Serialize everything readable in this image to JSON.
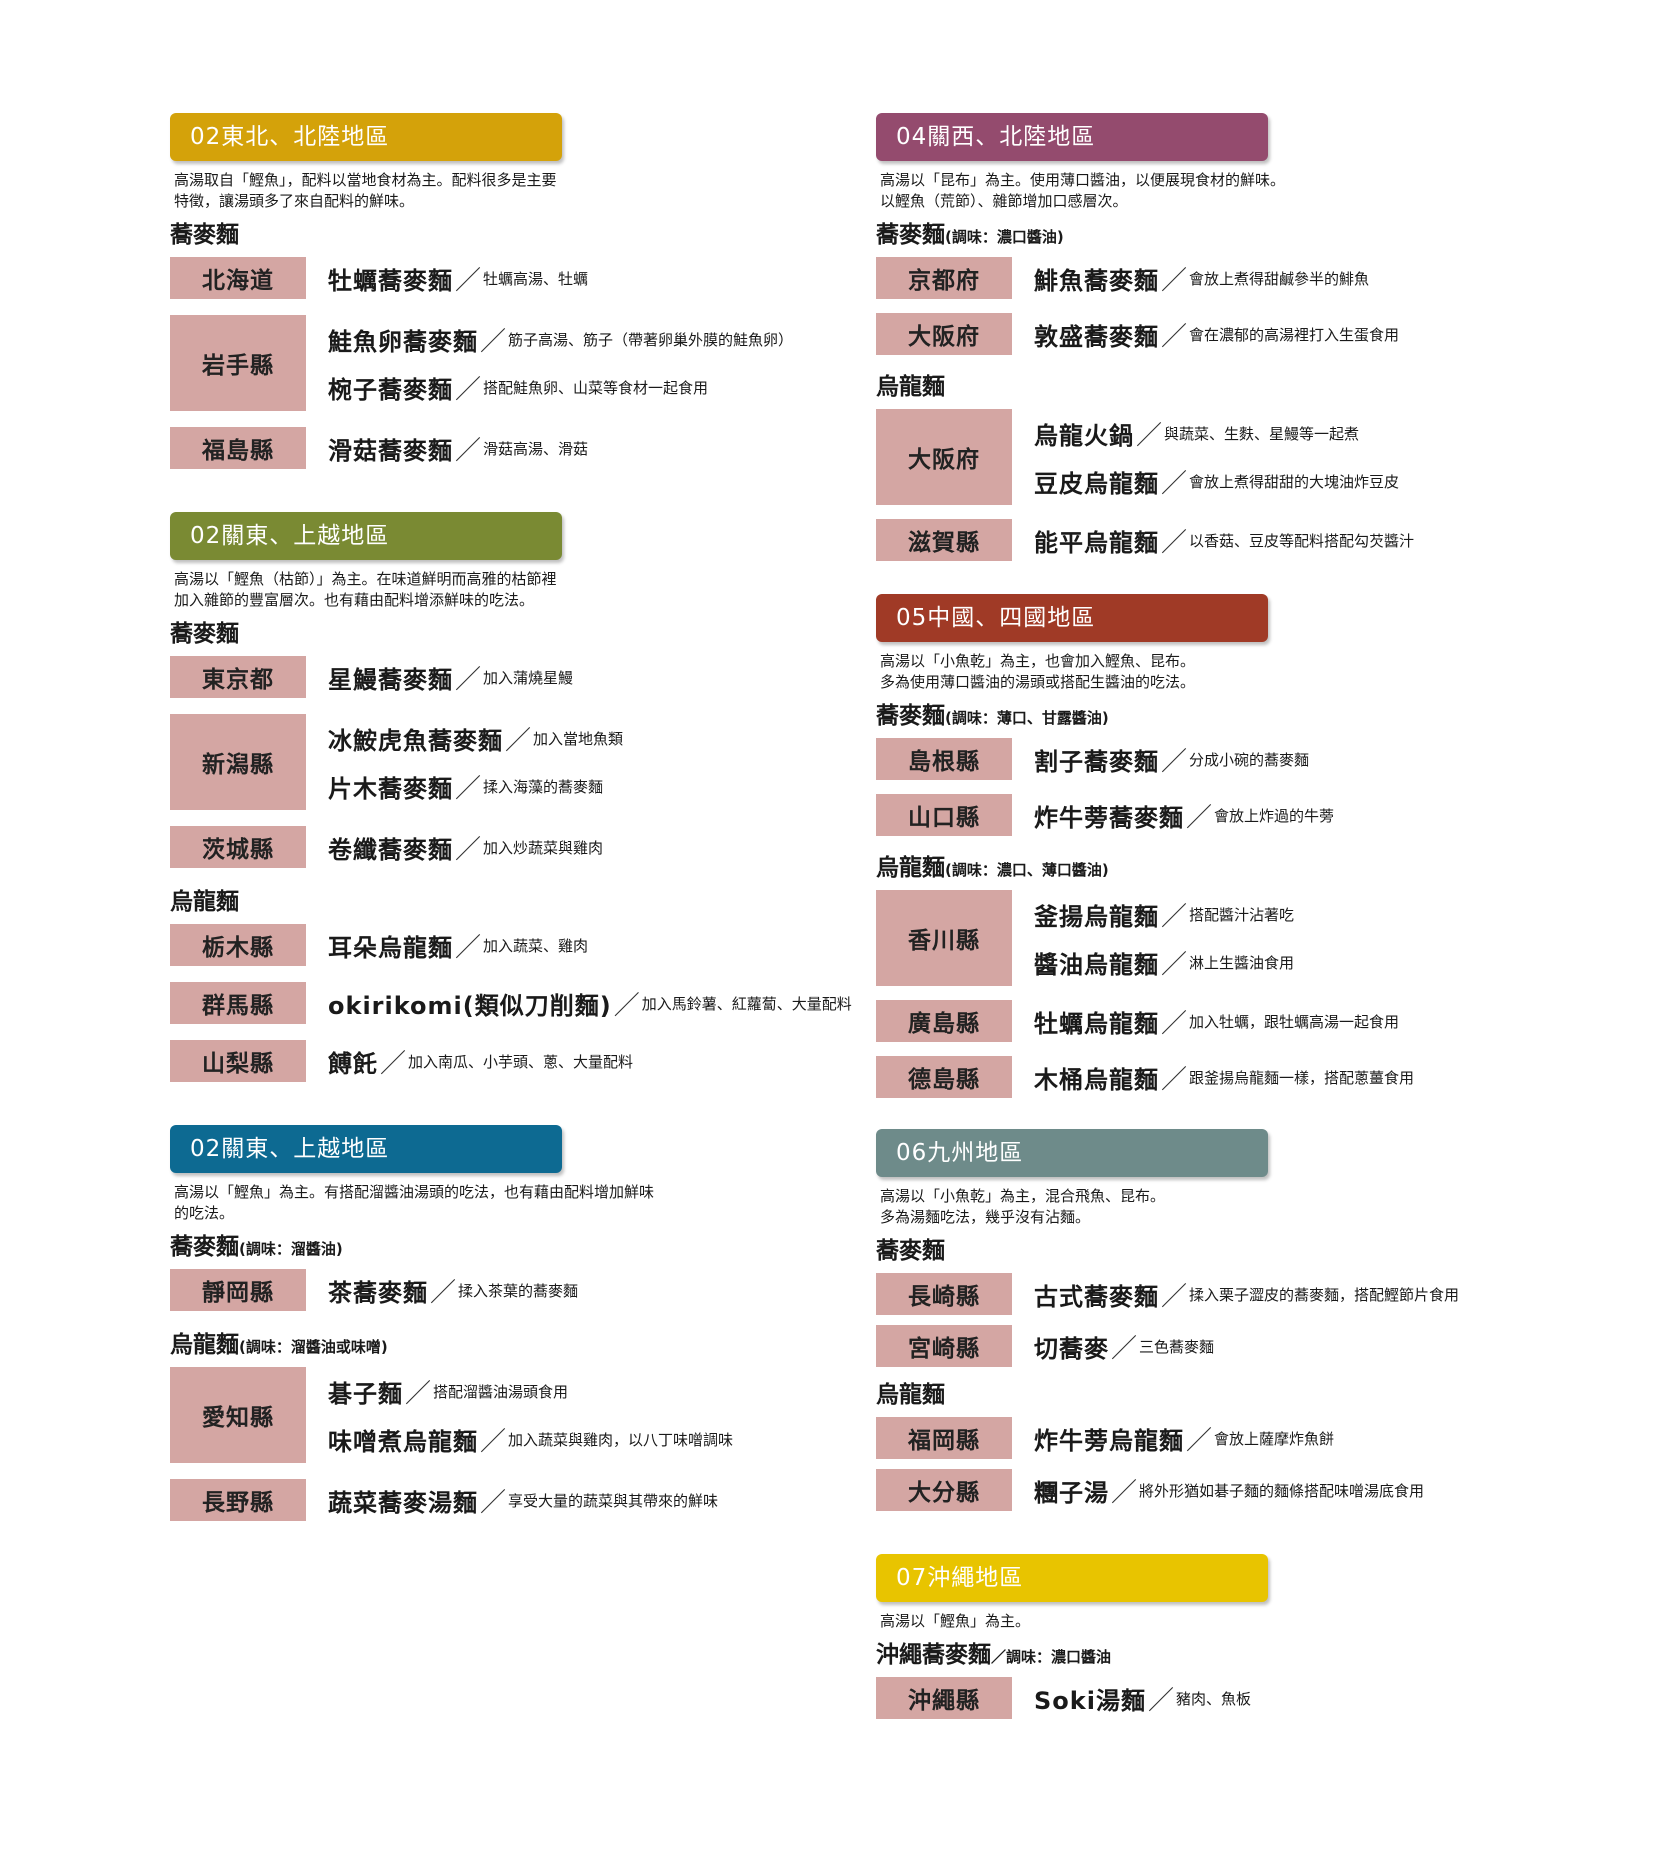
{
  "left": [
    {
      "title": "02東北、北陸地區",
      "color": "#d4a20a",
      "desc": "高湯取自「鰹魚」，配料以當地食材為主。配料很多是主要\n特徵，讓湯頭多了來自配料的鮮味。",
      "groups": [
        {
          "heading": "蕎麥麵",
          "note": "",
          "rows": [
            {
              "pref": "北海道",
              "dishes": [
                {
                  "name": "牡蠣蕎麥麵",
                  "desc": "牡蠣高湯、牡蠣"
                }
              ]
            },
            {
              "pref": "岩手縣",
              "dishes": [
                {
                  "name": "鮭魚卵蕎麥麵",
                  "desc": "筋子高湯、筋子（帶著卵巢外膜的鮭魚卵）"
                },
                {
                  "name": "椀子蕎麥麵",
                  "desc": "搭配鮭魚卵、山菜等食材一起食用"
                }
              ]
            },
            {
              "pref": "福島縣",
              "dishes": [
                {
                  "name": "滑菇蕎麥麵",
                  "desc": "滑菇高湯、滑菇"
                }
              ]
            }
          ]
        }
      ]
    },
    {
      "title": "02關東、上越地區",
      "color": "#7a8a33",
      "desc": "高湯以「鰹魚（枯節）」為主。在味道鮮明而高雅的枯節裡\n加入雜節的豐富層次。也有藉由配料增添鮮味的吃法。",
      "groups": [
        {
          "heading": "蕎麥麵",
          "note": "",
          "rows": [
            {
              "pref": "東京都",
              "dishes": [
                {
                  "name": "星鰻蕎麥麵",
                  "desc": "加入蒲燒星鰻"
                }
              ]
            },
            {
              "pref": "新潟縣",
              "dishes": [
                {
                  "name": "冰鮟虎魚蕎麥麵",
                  "desc": "加入當地魚類"
                },
                {
                  "name": "片木蕎麥麵",
                  "desc": "揉入海藻的蕎麥麵"
                }
              ]
            },
            {
              "pref": "茨城縣",
              "dishes": [
                {
                  "name": "卷纖蕎麥麵",
                  "desc": "加入炒蔬菜與雞肉"
                }
              ]
            }
          ]
        },
        {
          "heading": "烏龍麵",
          "note": "",
          "rows": [
            {
              "pref": "栃木縣",
              "dishes": [
                {
                  "name": "耳朵烏龍麵",
                  "desc": "加入蔬菜、雞肉"
                }
              ]
            },
            {
              "pref": "群馬縣",
              "dishes": [
                {
                  "name": "okirikomi(類似刀削麵)",
                  "desc": "加入馬鈴薯、紅蘿蔔、大量配料"
                }
              ]
            },
            {
              "pref": "山梨縣",
              "dishes": [
                {
                  "name": "餺飥",
                  "desc": "加入南瓜、小芋頭、蔥、大量配料"
                }
              ]
            }
          ]
        }
      ]
    },
    {
      "title": "02關東、上越地區",
      "color": "#0d6a92",
      "desc": "高湯以「鰹魚」為主。有搭配溜醬油湯頭的吃法，也有藉由配料增加鮮味\n的吃法。",
      "groups": [
        {
          "heading": "蕎麥麵",
          "note": "(調味：溜醬油)",
          "rows": [
            {
              "pref": "靜岡縣",
              "dishes": [
                {
                  "name": "茶蕎麥麵",
                  "desc": "揉入茶葉的蕎麥麵"
                }
              ]
            }
          ]
        },
        {
          "heading": "烏龍麵",
          "note": "(調味：溜醬油或味噌)",
          "rows": [
            {
              "pref": "愛知縣",
              "dishes": [
                {
                  "name": "碁子麵",
                  "desc": "搭配溜醬油湯頭食用"
                },
                {
                  "name": "味噌煮烏龍麵",
                  "desc": "加入蔬菜與雞肉，以八丁味噌調味"
                }
              ]
            },
            {
              "pref": "長野縣",
              "dishes": [
                {
                  "name": "蔬菜蕎麥湯麵",
                  "desc": "享受大量的蔬菜與其帶來的鮮味"
                }
              ]
            }
          ]
        }
      ]
    }
  ],
  "right": [
    {
      "title": "04關西、北陸地區",
      "color": "#944b6e",
      "desc": "高湯以「昆布」為主。使用薄口醬油，以便展現食材的鮮味。\n以鰹魚（荒節）、雜節增加口感層次。",
      "groups": [
        {
          "heading": "蕎麥麵",
          "note": "(調味：濃口醬油)",
          "rows": [
            {
              "pref": "京都府",
              "dishes": [
                {
                  "name": "鯡魚蕎麥麵",
                  "desc": "會放上煮得甜鹹參半的鯡魚"
                }
              ]
            },
            {
              "pref": "大阪府",
              "dishes": [
                {
                  "name": "敦盛蕎麥麵",
                  "desc": "會在濃郁的高湯裡打入生蛋食用"
                }
              ]
            }
          ]
        },
        {
          "heading": "烏龍麵",
          "note": "",
          "rows": [
            {
              "pref": "大阪府",
              "dishes": [
                {
                  "name": "烏龍火鍋",
                  "desc": "與蔬菜、生麩、星鰻等一起煮"
                },
                {
                  "name": "豆皮烏龍麵",
                  "desc": "會放上煮得甜甜的大塊油炸豆皮"
                }
              ]
            },
            {
              "pref": "滋賀縣",
              "dishes": [
                {
                  "name": "能平烏龍麵",
                  "desc": "以香菇、豆皮等配料搭配勾芡醬汁"
                }
              ]
            }
          ]
        }
      ]
    },
    {
      "title": "05中國、四國地區",
      "color": "#a03a26",
      "desc": "高湯以「小魚乾」為主，也會加入鰹魚、昆布。\n多為使用薄口醬油的湯頭或搭配生醬油的吃法。",
      "groups": [
        {
          "heading": "蕎麥麵",
          "note": "(調味：薄口、甘露醬油)",
          "rows": [
            {
              "pref": "島根縣",
              "dishes": [
                {
                  "name": "割子蕎麥麵",
                  "desc": "分成小碗的蕎麥麵"
                }
              ]
            },
            {
              "pref": "山口縣",
              "dishes": [
                {
                  "name": "炸牛蒡蕎麥麵",
                  "desc": "會放上炸過的牛蒡"
                }
              ]
            }
          ]
        },
        {
          "heading": "烏龍麵",
          "note": "(調味：濃口、薄口醬油)",
          "rows": [
            {
              "pref": "香川縣",
              "dishes": [
                {
                  "name": "釜揚烏龍麵",
                  "desc": "搭配醬汁沾著吃"
                },
                {
                  "name": "醬油烏龍麵",
                  "desc": "淋上生醬油食用"
                }
              ]
            },
            {
              "pref": "廣島縣",
              "dishes": [
                {
                  "name": "牡蠣烏龍麵",
                  "desc": "加入牡蠣，跟牡蠣高湯一起食用"
                }
              ]
            },
            {
              "pref": "德島縣",
              "dishes": [
                {
                  "name": "木桶烏龍麵",
                  "desc": "跟釜揚烏龍麵一樣，搭配蔥薑食用"
                }
              ]
            }
          ]
        }
      ]
    },
    {
      "title": "06九州地區",
      "color": "#6e8b8a",
      "desc": "高湯以「小魚乾」為主，混合飛魚、昆布。\n多為湯麵吃法，幾乎沒有沾麵。",
      "groups": [
        {
          "heading": "蕎麥麵",
          "note": "",
          "rows": [
            {
              "pref": "長崎縣",
              "dishes": [
                {
                  "name": "古式蕎麥麵",
                  "desc": "揉入栗子澀皮的蕎麥麵，搭配鰹節片食用"
                }
              ]
            },
            {
              "pref": "宮崎縣",
              "dishes": [
                {
                  "name": "切蕎麥",
                  "desc": "三色蕎麥麵"
                }
              ]
            }
          ]
        },
        {
          "heading": "烏龍麵",
          "note": "",
          "rows": [
            {
              "pref": "福岡縣",
              "dishes": [
                {
                  "name": "炸牛蒡烏龍麵",
                  "desc": "會放上薩摩炸魚餅"
                }
              ]
            },
            {
              "pref": "大分縣",
              "dishes": [
                {
                  "name": "糰子湯",
                  "desc": "將外形猶如碁子麵的麵條搭配味噌湯底食用"
                }
              ]
            }
          ]
        }
      ]
    },
    {
      "title": "07沖繩地區",
      "color": "#e8c400",
      "desc": "高湯以「鰹魚」為主。",
      "groups": [
        {
          "heading": "沖繩蕎麥麵",
          "note": "／調味：濃口醬油",
          "rows": [
            {
              "pref": "沖繩縣",
              "dishes": [
                {
                  "name": "Soki湯麵",
                  "desc": "豬肉、魚板"
                }
              ]
            }
          ]
        }
      ]
    }
  ],
  "slash_glyph": "／"
}
